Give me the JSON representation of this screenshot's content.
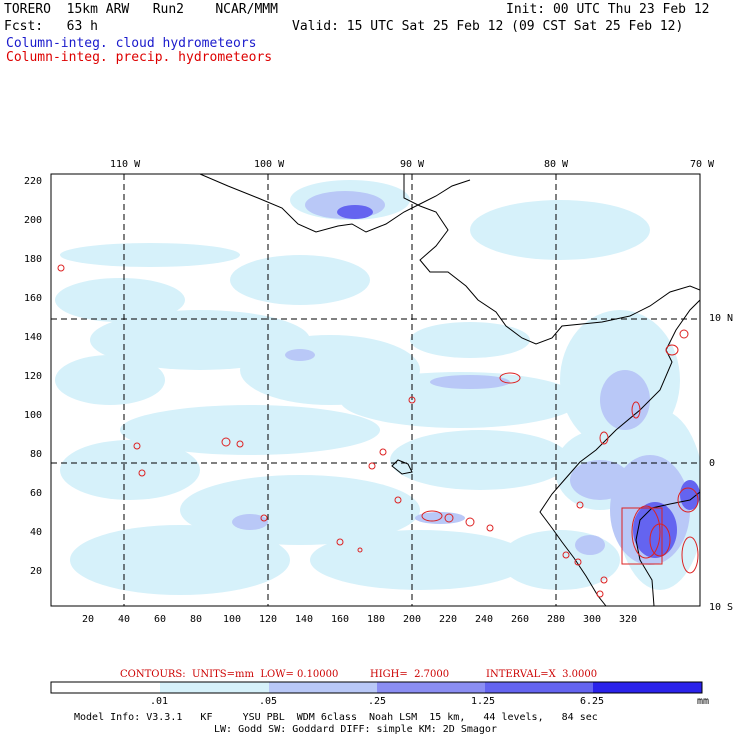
{
  "header": {
    "model_line": "TORERO  15km ARW   Run2    NCAR/MMM",
    "init": "Init: 00 UTC Thu 23 Feb 12",
    "fcst": "Fcst:   63 h",
    "valid": "Valid: 15 UTC Sat 25 Feb 12 (09 CST Sat 25 Feb 12)",
    "field_cloud": "Column-integ. cloud hydrometeors",
    "field_precip": "Column-integ. precip. hydrometeors"
  },
  "colors": {
    "cloud_label": "#1a1acc",
    "precip_label": "#dd0000",
    "contour": "#dd2222",
    "coast": "#000000"
  },
  "map": {
    "lon_labels": [
      "110 W",
      "100 W",
      "90 W",
      "80 W",
      "70 W"
    ],
    "lat_labels": [
      "10 N",
      "0",
      "10 S"
    ],
    "x_ticks": [
      "20",
      "40",
      "60",
      "80",
      "100",
      "120",
      "140",
      "160",
      "180",
      "200",
      "220",
      "240",
      "260",
      "280",
      "300",
      "320"
    ],
    "y_ticks": [
      "220",
      "200",
      "180",
      "160",
      "140",
      "120",
      "100",
      "80",
      "60",
      "40",
      "20"
    ]
  },
  "contours": {
    "caption_units": "CONTOURS:  UNITS=mm  LOW= 0.10000",
    "caption_high": "HIGH=  2.7000",
    "caption_interval": "INTERVAL=X  3.0000"
  },
  "colorbar": {
    "levels": [
      ".01",
      ".05",
      ".25",
      "1.25",
      "6.25"
    ],
    "unit": "mm",
    "colors": [
      "#ffffff",
      "#d6f1fa",
      "#b9c8f7",
      "#8b8ef3",
      "#6464f0",
      "#2a22ea"
    ]
  },
  "footer": {
    "line1": "Model Info: V3.3.1   KF     YSU PBL  WDM 6class  Noah LSM  15 km,   44 levels,   84 sec",
    "line2": "LW: Godd SW: Goddard DIFF: simple KM: 2D Smagor"
  }
}
